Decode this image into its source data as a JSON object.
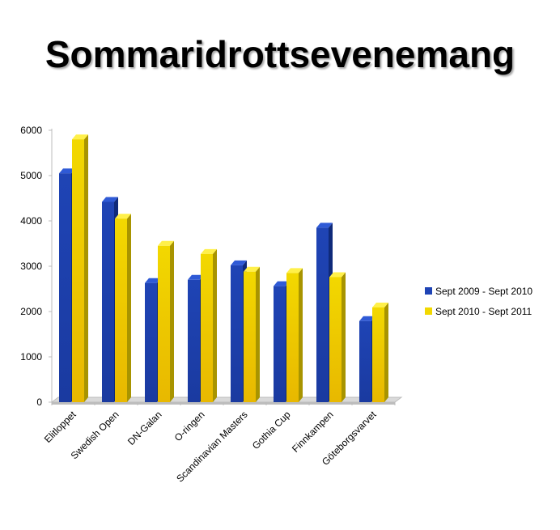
{
  "slide": {
    "title": "Sommaridrottsevenemang"
  },
  "colors": {
    "series1": "#1f44b5",
    "series1_light": "#2f5ad6",
    "series1_dark": "#0f2a7a",
    "series2": "#f2d800",
    "series2_light": "#fff04a",
    "series2_dark": "#a89400",
    "axis": "#bcbcbc",
    "floor": "#d9d9d9"
  },
  "chart_data": {
    "type": "bar",
    "title": "",
    "xlabel": "",
    "ylabel": "",
    "ylim": [
      0,
      6000
    ],
    "yticks": [
      0,
      1000,
      2000,
      3000,
      4000,
      5000,
      6000
    ],
    "categories": [
      "Elitloppet",
      "Swedish Open",
      "DN-Galan",
      "O-ringen",
      "Scandinavian Masters",
      "Gothia Cup",
      "Finnkampen",
      "Göteborgsvarvet"
    ],
    "series": [
      {
        "name": "Sept 2009 - Sept 2010",
        "values": [
          5050,
          4420,
          2630,
          2700,
          3020,
          2560,
          3850,
          1790
        ]
      },
      {
        "name": "Sept 2010 - Sept 2011",
        "values": [
          5800,
          4050,
          3450,
          3270,
          2880,
          2850,
          2760,
          2090
        ]
      }
    ],
    "legend_position": "right",
    "grid": false
  }
}
